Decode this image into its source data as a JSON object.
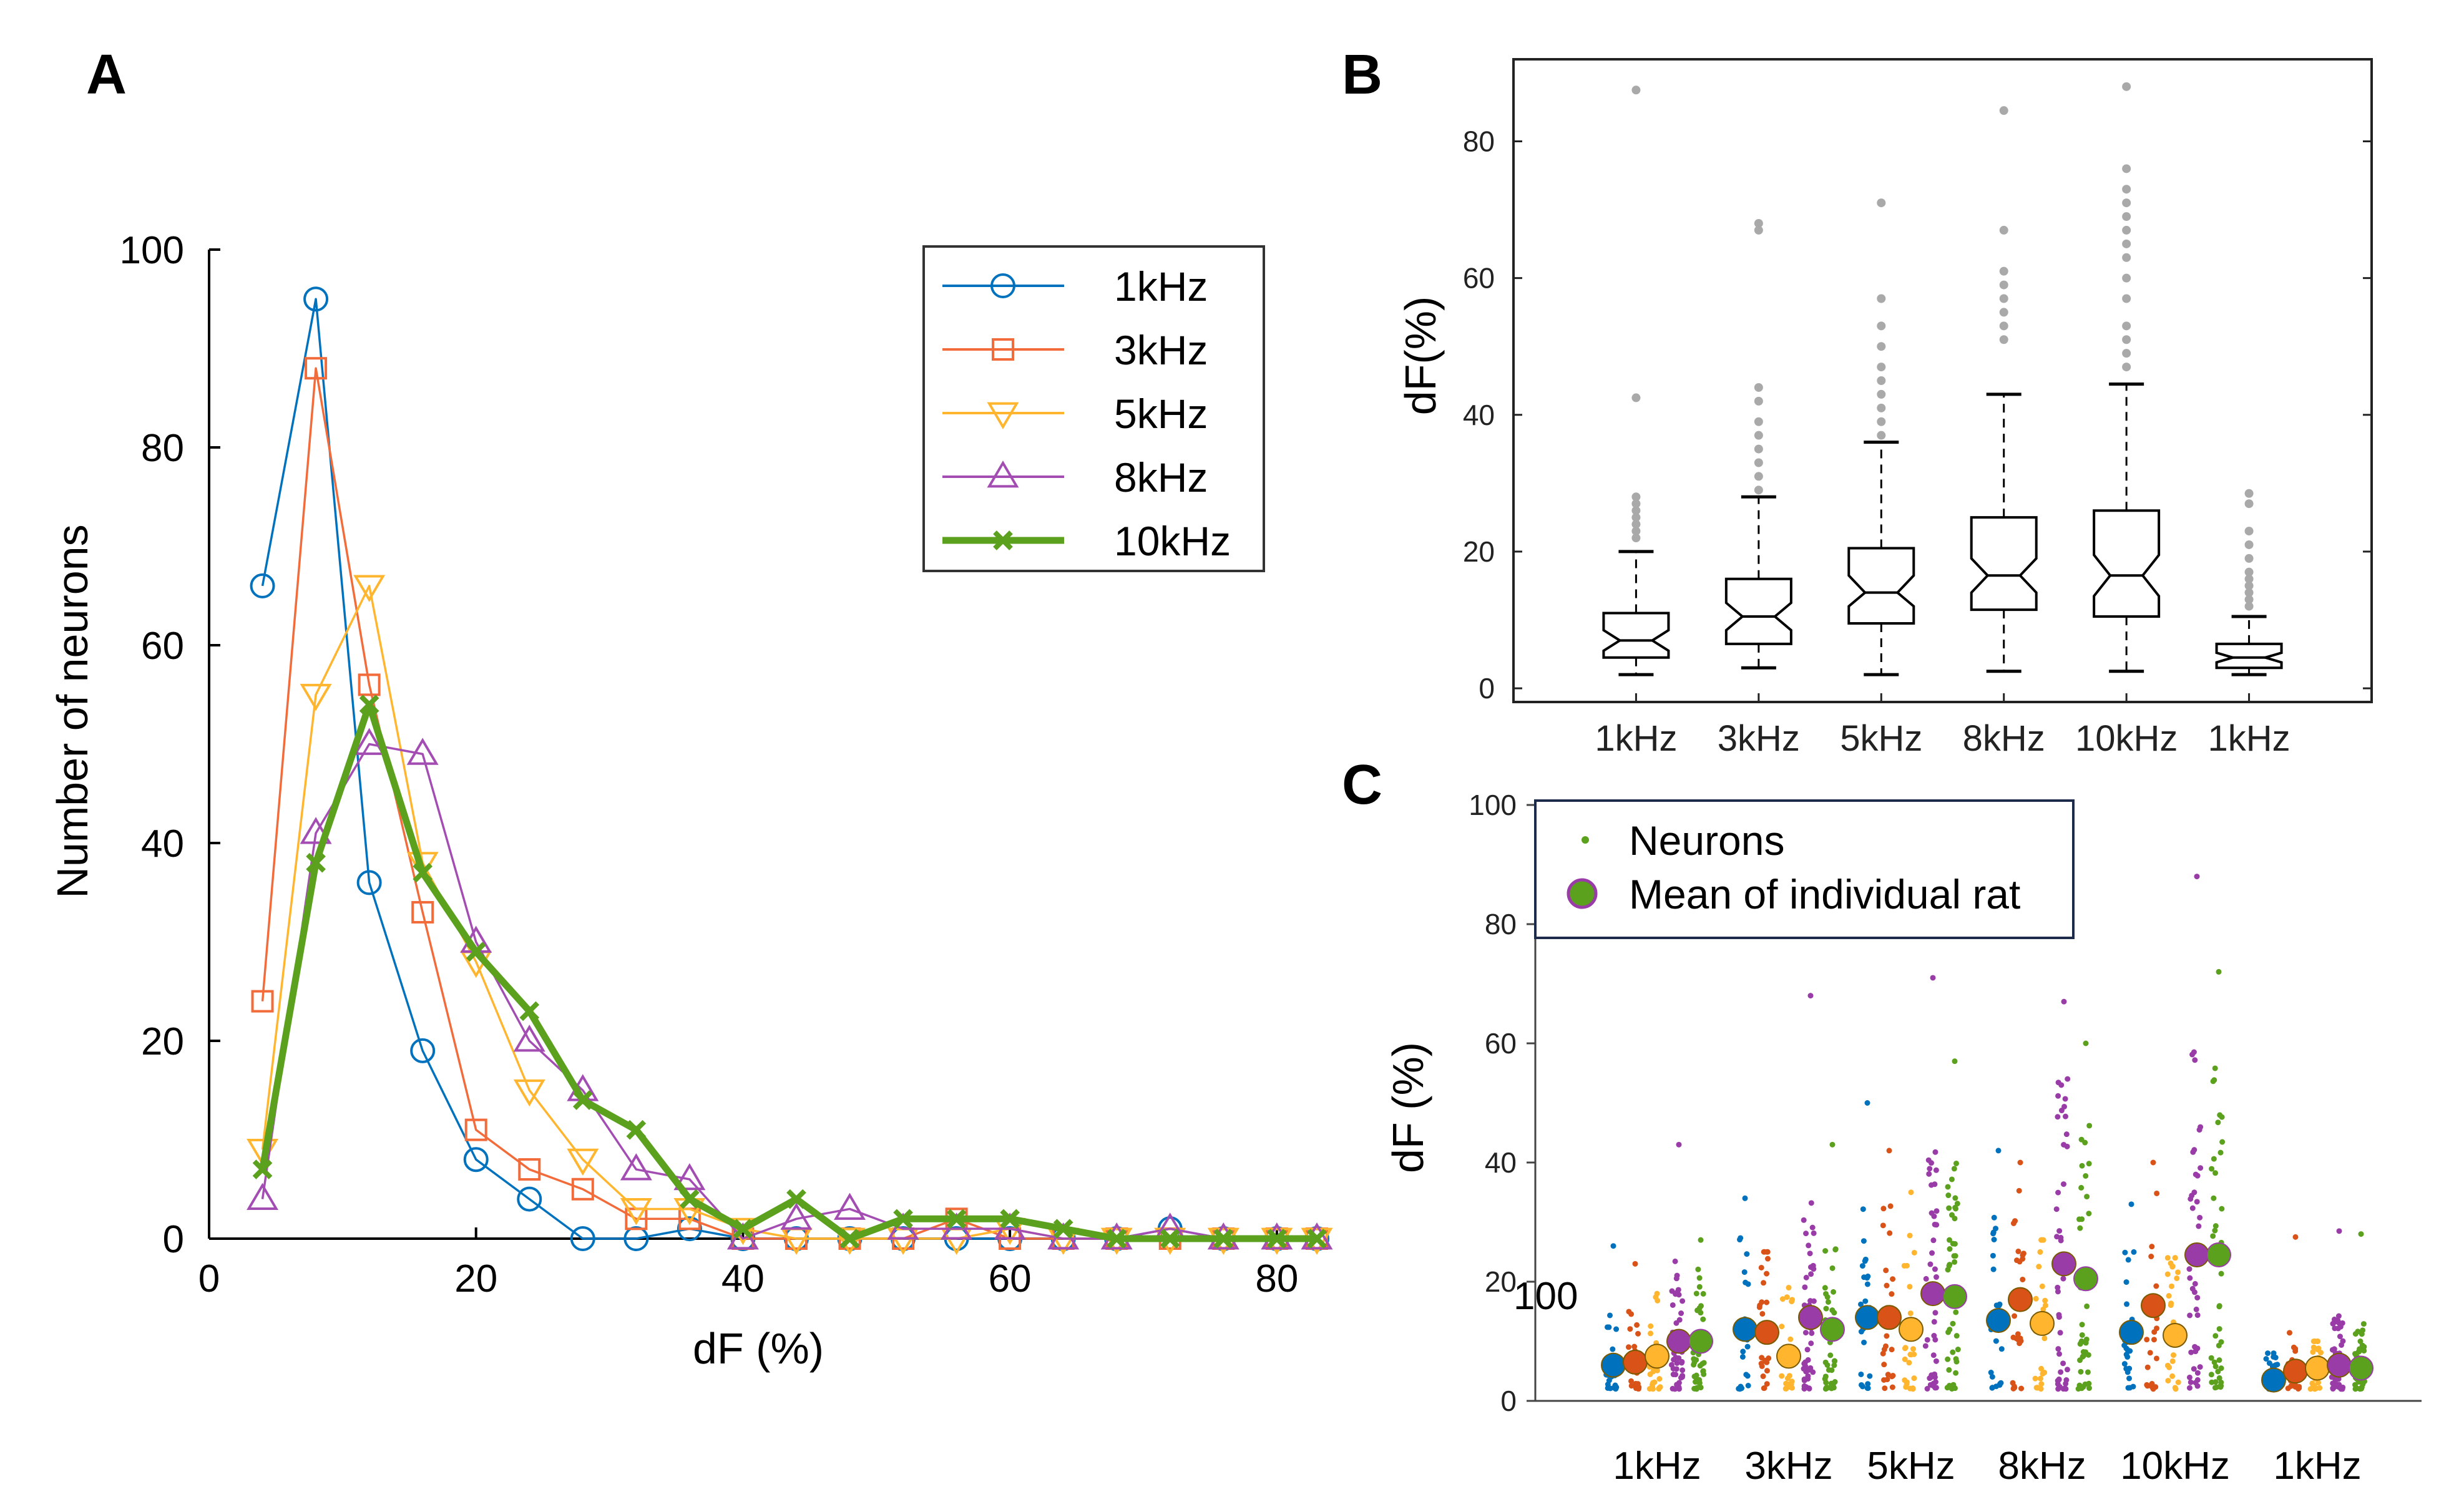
{
  "panels": {
    "a": "A",
    "b": "B",
    "c": "C"
  },
  "chart_data": [
    {
      "type": "line",
      "panel": "A",
      "xlabel": "dF (%)",
      "ylabel": "Number of neurons",
      "xlim": [
        0,
        83
      ],
      "ylim": [
        0,
        100
      ],
      "xticks": [
        "0",
        "20",
        "40",
        "60",
        "80"
      ],
      "yticks": [
        "0",
        "20",
        "40",
        "60",
        "80",
        "100"
      ],
      "legend": {
        "position": "top-right"
      },
      "x": [
        4,
        8,
        12,
        16,
        20,
        24,
        28,
        32,
        36,
        40,
        44,
        48,
        52,
        56,
        60,
        64,
        68,
        72,
        76,
        80,
        83
      ],
      "series": [
        {
          "name": "1kHz",
          "color": "#0072BD",
          "marker": "circle",
          "values": [
            66,
            95,
            36,
            19,
            8,
            4,
            0,
            0,
            1,
            0,
            0,
            0,
            0,
            0,
            0,
            0,
            0,
            1,
            0,
            0,
            0
          ]
        },
        {
          "name": "3kHz",
          "color": "#F26B3A",
          "marker": "square",
          "values": [
            24,
            88,
            56,
            33,
            11,
            7,
            5,
            2,
            2,
            0,
            0,
            0,
            0,
            2,
            0,
            0,
            0,
            0,
            0,
            0,
            0
          ]
        },
        {
          "name": "5kHz",
          "color": "#FFB52E",
          "marker": "triangle-down",
          "values": [
            9,
            55,
            66,
            38,
            28,
            15,
            8,
            3,
            3,
            1,
            0,
            0,
            0,
            0,
            1,
            0,
            0,
            0,
            0,
            0,
            0
          ]
        },
        {
          "name": "8kHz",
          "color": "#A34DB3",
          "marker": "triangle-up",
          "values": [
            4,
            41,
            50,
            49,
            30,
            20,
            15,
            7,
            6,
            0,
            2,
            3,
            1,
            1,
            1,
            0,
            0,
            1,
            0,
            0,
            0
          ]
        },
        {
          "name": "10kHz",
          "color": "#5BA11E",
          "marker": "x",
          "bold": true,
          "values": [
            7,
            38,
            54,
            37,
            29,
            23,
            14,
            11,
            4,
            1,
            4,
            0,
            2,
            2,
            2,
            1,
            0,
            0,
            0,
            0,
            0
          ]
        }
      ]
    },
    {
      "type": "box",
      "panel": "B",
      "ylabel": "dF(%)",
      "ylim": [
        -2,
        92
      ],
      "yticks": [
        "0",
        "20",
        "40",
        "60",
        "80"
      ],
      "categories": [
        "1kHz",
        "3kHz",
        "5kHz",
        "8kHz",
        "10kHz",
        "1kHz"
      ],
      "boxes": [
        {
          "min": 2,
          "q1": 4.5,
          "median": 7,
          "q3": 11,
          "max": 20,
          "notch": [
            5.5,
            8.5
          ],
          "outliers": [
            22,
            23,
            24,
            25,
            26,
            27,
            28,
            42.5,
            87.5
          ]
        },
        {
          "min": 3,
          "q1": 6.5,
          "median": 10.5,
          "q3": 16,
          "max": 28,
          "notch": [
            8.5,
            12.5
          ],
          "outliers": [
            29,
            31,
            33,
            35,
            37,
            39,
            42,
            44,
            67,
            68
          ]
        },
        {
          "min": 2,
          "q1": 9.5,
          "median": 14,
          "q3": 20.5,
          "max": 36,
          "notch": [
            12,
            16.5
          ],
          "outliers": [
            37,
            39,
            41,
            43,
            45,
            47,
            50,
            53,
            57,
            71
          ]
        },
        {
          "min": 2.5,
          "q1": 11.5,
          "median": 16.5,
          "q3": 25,
          "max": 43,
          "notch": [
            14,
            19
          ],
          "outliers": [
            51,
            53,
            55,
            57,
            59,
            61,
            67,
            84.5
          ]
        },
        {
          "min": 2.5,
          "q1": 10.5,
          "median": 16.5,
          "q3": 26,
          "max": 44.5,
          "notch": [
            13.5,
            19.5
          ],
          "outliers": [
            47,
            49,
            51,
            53,
            57,
            60,
            63,
            65,
            67,
            69,
            71,
            73,
            76,
            88
          ]
        },
        {
          "min": 2,
          "q1": 3,
          "median": 4.5,
          "q3": 6.5,
          "max": 10.5,
          "notch": [
            3.8,
            5.2
          ],
          "outliers": [
            12,
            13,
            14,
            15,
            16,
            17,
            19,
            21,
            23,
            27,
            28.5
          ]
        }
      ]
    },
    {
      "type": "scatter",
      "panel": "C",
      "ylabel": "dF (%)",
      "ylim": [
        0,
        100
      ],
      "yticks": [
        "0",
        "20",
        "40",
        "60",
        "80",
        "100"
      ],
      "categories": [
        "1kHz",
        "3kHz",
        "5kHz",
        "8kHz",
        "10kHz",
        "1kHz"
      ],
      "stray_label": "100",
      "legend": {
        "position": "top-left",
        "neurons": "Neurons",
        "mean": "Mean of individual rat"
      },
      "rat_colors": [
        "#0072BD",
        "#D95319",
        "#FFB52E",
        "#9A3CA8",
        "#5BA11E"
      ],
      "rat_means": [
        [
          6,
          6.5,
          7.5,
          10,
          10
        ],
        [
          12,
          11.5,
          7.5,
          14,
          12
        ],
        [
          14,
          14,
          12,
          18,
          17.5
        ],
        [
          13.5,
          17,
          13,
          23,
          20.5
        ],
        [
          11.5,
          16,
          11,
          24.5,
          24.5
        ],
        [
          3.5,
          5,
          5.5,
          6,
          5.5
        ]
      ],
      "rat_max": [
        [
          26,
          23,
          18,
          43,
          27
        ],
        [
          34,
          25,
          19,
          68,
          43
        ],
        [
          50,
          42,
          35,
          71,
          57
        ],
        [
          42,
          40,
          27,
          67,
          60
        ],
        [
          33,
          40,
          24,
          88,
          72
        ],
        [
          8,
          27.5,
          10,
          28.5,
          28
        ]
      ]
    }
  ]
}
